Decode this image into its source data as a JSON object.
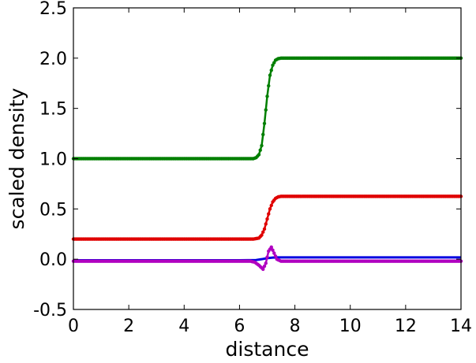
{
  "chart_data": {
    "type": "line",
    "title": "",
    "xlabel": "distance",
    "ylabel": "scaled density",
    "xlim": [
      0,
      14
    ],
    "ylim": [
      -0.5,
      2.5
    ],
    "xticks": [
      0,
      2,
      4,
      6,
      8,
      10,
      12,
      14
    ],
    "xtick_labels": [
      "0",
      "2",
      "4",
      "6",
      "8",
      "10",
      "12",
      "14"
    ],
    "yticks": [
      -0.5,
      0.0,
      0.5,
      1.0,
      1.5,
      2.0,
      2.5
    ],
    "ytick_labels": [
      "-0.5",
      "0.0",
      "0.5",
      "1.0",
      "1.5",
      "2.0",
      "2.5"
    ],
    "grid": false,
    "legend": "none",
    "series": [
      {
        "color": "#007f00",
        "marker": "dot",
        "x": [
          0,
          1,
          2,
          3,
          4,
          5,
          6,
          6.5,
          6.6,
          6.7,
          6.8,
          6.9,
          7.0,
          7.1,
          7.2,
          7.3,
          7.4,
          7.5,
          7.7,
          8,
          9,
          10,
          11,
          12,
          13,
          14
        ],
        "y": [
          1.0,
          1.0,
          1.0,
          1.0,
          1.0,
          1.0,
          1.0,
          1.0,
          1.01,
          1.04,
          1.13,
          1.35,
          1.62,
          1.83,
          1.93,
          1.98,
          1.995,
          2.0,
          2.0,
          2.0,
          2.0,
          2.0,
          2.0,
          2.0,
          2.0,
          2.0
        ]
      },
      {
        "color": "#e00000",
        "marker": "dot",
        "x": [
          0,
          1,
          2,
          3,
          4,
          5,
          6,
          6.5,
          6.7,
          6.8,
          6.9,
          7.0,
          7.1,
          7.2,
          7.3,
          7.4,
          7.5,
          7.7,
          8,
          9,
          10,
          11,
          12,
          13,
          14
        ],
        "y": [
          0.2,
          0.2,
          0.2,
          0.2,
          0.2,
          0.2,
          0.2,
          0.2,
          0.21,
          0.24,
          0.3,
          0.4,
          0.5,
          0.57,
          0.605,
          0.62,
          0.625,
          0.625,
          0.625,
          0.625,
          0.625,
          0.625,
          0.625,
          0.625,
          0.625
        ]
      },
      {
        "color": "#0000e0",
        "marker": "line",
        "x": [
          0,
          1,
          2,
          3,
          4,
          5,
          6,
          6.6,
          6.8,
          7.0,
          7.2,
          7.4,
          7.6,
          8,
          9,
          10,
          11,
          12,
          13,
          14
        ],
        "y": [
          -0.01,
          -0.01,
          -0.01,
          -0.01,
          -0.01,
          -0.01,
          -0.01,
          -0.008,
          0.0,
          0.01,
          0.016,
          0.018,
          0.018,
          0.018,
          0.018,
          0.018,
          0.018,
          0.018,
          0.018,
          0.018
        ]
      },
      {
        "color": "#b000c0",
        "marker": "dot",
        "x": [
          0,
          1,
          2,
          3,
          4,
          5,
          6,
          6.4,
          6.55,
          6.7,
          6.85,
          6.95,
          7.05,
          7.15,
          7.25,
          7.35,
          7.5,
          7.7,
          8,
          9,
          10,
          11,
          12,
          13,
          14
        ],
        "y": [
          -0.02,
          -0.02,
          -0.02,
          -0.02,
          -0.02,
          -0.02,
          -0.02,
          -0.02,
          -0.03,
          -0.06,
          -0.1,
          -0.04,
          0.08,
          0.12,
          0.06,
          0.0,
          -0.02,
          -0.02,
          -0.02,
          -0.02,
          -0.02,
          -0.02,
          -0.02,
          -0.02,
          -0.02
        ]
      }
    ]
  }
}
